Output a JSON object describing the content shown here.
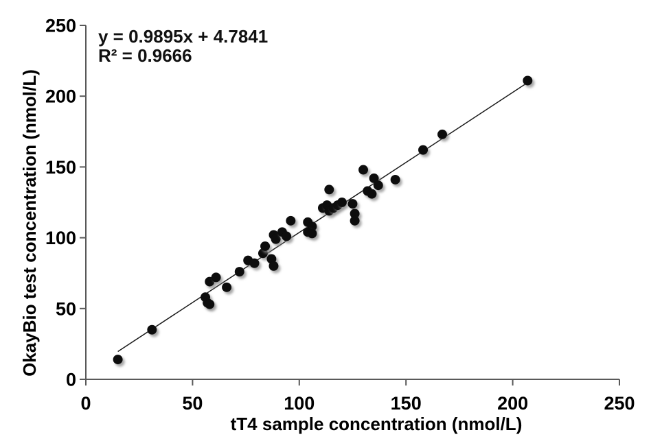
{
  "chart_data": {
    "type": "scatter",
    "title": "",
    "equation": "y = 0.9895x + 4.7841",
    "r_squared_label": "R² = 0.9666",
    "xlabel": "tT4 sample concentration (nmol/L)",
    "ylabel": "OkayBio test concentration (nmol/L)",
    "xlim": [
      0,
      250
    ],
    "ylim": [
      0,
      250
    ],
    "x_ticks": [
      0,
      50,
      100,
      150,
      200,
      250
    ],
    "y_ticks": [
      0,
      50,
      100,
      150,
      200,
      250
    ],
    "grid": false,
    "legend": "none",
    "trendline": {
      "slope": 0.9895,
      "intercept": 4.7841,
      "x_start": 15,
      "x_end": 208
    },
    "points": [
      {
        "x": 15,
        "y": 14
      },
      {
        "x": 31,
        "y": 35
      },
      {
        "x": 56,
        "y": 58
      },
      {
        "x": 57,
        "y": 54
      },
      {
        "x": 58,
        "y": 53
      },
      {
        "x": 58,
        "y": 69
      },
      {
        "x": 61,
        "y": 72
      },
      {
        "x": 66,
        "y": 65
      },
      {
        "x": 72,
        "y": 76
      },
      {
        "x": 76,
        "y": 84
      },
      {
        "x": 79,
        "y": 82
      },
      {
        "x": 83,
        "y": 89
      },
      {
        "x": 84,
        "y": 94
      },
      {
        "x": 87,
        "y": 85
      },
      {
        "x": 88,
        "y": 80
      },
      {
        "x": 88,
        "y": 102
      },
      {
        "x": 89,
        "y": 99
      },
      {
        "x": 92,
        "y": 104
      },
      {
        "x": 94,
        "y": 101
      },
      {
        "x": 96,
        "y": 112
      },
      {
        "x": 104,
        "y": 111
      },
      {
        "x": 106,
        "y": 108
      },
      {
        "x": 104,
        "y": 104
      },
      {
        "x": 106,
        "y": 103
      },
      {
        "x": 111,
        "y": 121
      },
      {
        "x": 113,
        "y": 123
      },
      {
        "x": 114,
        "y": 119
      },
      {
        "x": 116,
        "y": 121
      },
      {
        "x": 118,
        "y": 123
      },
      {
        "x": 120,
        "y": 125
      },
      {
        "x": 114,
        "y": 134
      },
      {
        "x": 125,
        "y": 124
      },
      {
        "x": 126,
        "y": 117
      },
      {
        "x": 126,
        "y": 112
      },
      {
        "x": 130,
        "y": 148
      },
      {
        "x": 132,
        "y": 133
      },
      {
        "x": 134,
        "y": 131
      },
      {
        "x": 135,
        "y": 142
      },
      {
        "x": 137,
        "y": 137
      },
      {
        "x": 145,
        "y": 141
      },
      {
        "x": 158,
        "y": 162
      },
      {
        "x": 167,
        "y": 173
      },
      {
        "x": 207,
        "y": 211
      }
    ],
    "colors": {
      "point": "#0a0a0a",
      "trendline": "#1a1a1a",
      "axis": "#595959",
      "text": "#000000",
      "background": "#ffffff"
    }
  }
}
